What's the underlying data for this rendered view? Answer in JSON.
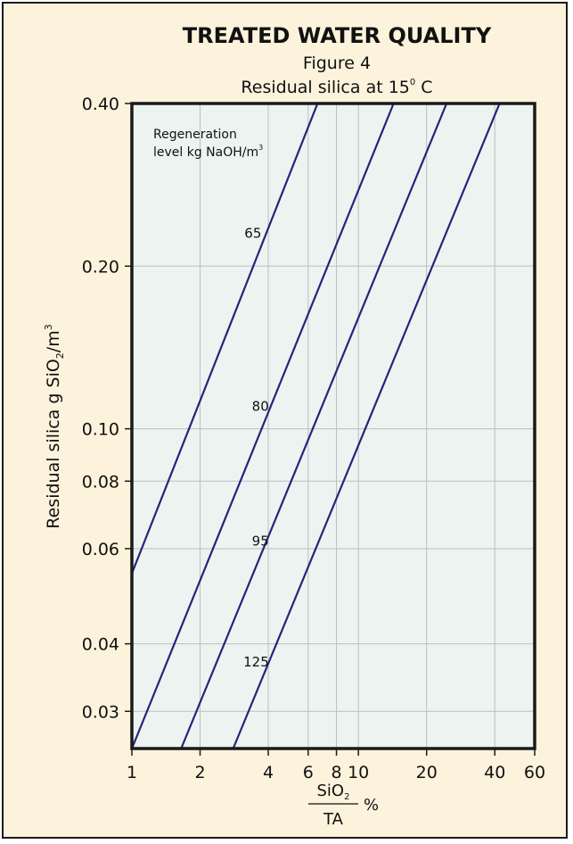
{
  "chart_data": {
    "type": "line",
    "title": "TREATED WATER QUALITY",
    "subtitle_line1": "Figure 4",
    "subtitle_line2": "Residual silica at 15",
    "subtitle_degree": "0",
    "subtitle_unit": " C",
    "ylabel_prefix": "Residual silica g SiO",
    "ylabel_sub": "2",
    "ylabel_mid": "/m",
    "ylabel_sup": "3",
    "xlabel_num": "SiO",
    "xlabel_num_sub": "2",
    "xlabel_den": "TA",
    "xlabel_unit": "%",
    "x_scale": "log",
    "y_scale": "log",
    "xlim": [
      1,
      60
    ],
    "ylim": [
      0.0256,
      0.4
    ],
    "x_ticks": [
      {
        "v": 1,
        "label": "1"
      },
      {
        "v": 2,
        "label": "2"
      },
      {
        "v": 4,
        "label": "4"
      },
      {
        "v": 6,
        "label": "6"
      },
      {
        "v": 8,
        "label": "8"
      },
      {
        "v": 10,
        "label": "10"
      },
      {
        "v": 20,
        "label": "20"
      },
      {
        "v": 40,
        "label": "40"
      },
      {
        "v": 60,
        "label": "60"
      }
    ],
    "x_gridlines": [
      2,
      4,
      6,
      8,
      10,
      20,
      40
    ],
    "y_ticks": [
      {
        "v": 0.4,
        "label": "0.40"
      },
      {
        "v": 0.2,
        "label": "0.20"
      },
      {
        "v": 0.1,
        "label": "0.10"
      },
      {
        "v": 0.08,
        "label": "0.08"
      },
      {
        "v": 0.06,
        "label": "0.06"
      },
      {
        "v": 0.04,
        "label": "0.04"
      },
      {
        "v": 0.03,
        "label": "0.03"
      }
    ],
    "y_gridlines": [
      0.2,
      0.1,
      0.08,
      0.06,
      0.04,
      0.03
    ],
    "grid": true,
    "annotation_line1": "Regeneration",
    "annotation_line2": "level kg NaOH/m",
    "annotation_sup": "3",
    "series": [
      {
        "name": "65",
        "x": [
          1.0,
          6.6
        ],
        "y": [
          0.054,
          0.4
        ],
        "label_at": [
          3.8,
          0.23
        ]
      },
      {
        "name": "80",
        "x": [
          1.0,
          14.3
        ],
        "y": [
          0.0256,
          0.4
        ],
        "label_at": [
          4.1,
          0.11
        ]
      },
      {
        "name": "95",
        "x": [
          1.65,
          24.5
        ],
        "y": [
          0.0256,
          0.4
        ],
        "label_at": [
          4.1,
          0.062
        ]
      },
      {
        "name": "125",
        "x": [
          2.8,
          42.0
        ],
        "y": [
          0.0256,
          0.4
        ],
        "label_at": [
          4.1,
          0.037
        ]
      }
    ],
    "colors": {
      "background": "#fdf3dc",
      "plot_area": "#ecf4f1",
      "line": "#27237a",
      "grid": "#b5c0c2",
      "frame": "#1a1a1a"
    }
  }
}
